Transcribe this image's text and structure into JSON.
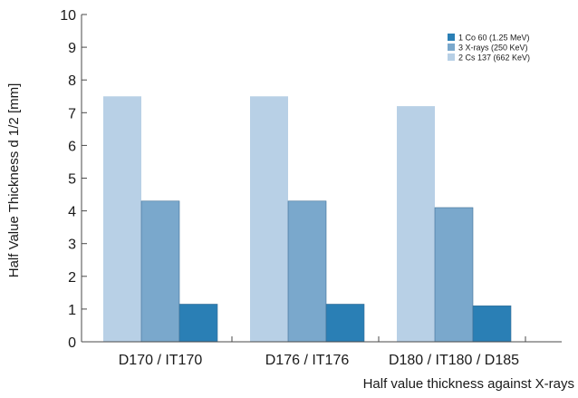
{
  "chart_data": {
    "type": "bar",
    "title": "",
    "xlabel": "Half value thickness against X-rays",
    "ylabel": "Half Value Thickness d 1/2 [mm]",
    "ylim": [
      0,
      10
    ],
    "yticks": [
      "0",
      "1",
      "2",
      "3",
      "4",
      "5",
      "6",
      "7",
      "8",
      "9",
      "10"
    ],
    "categories": [
      "D170 / IT170",
      "D176 / IT176",
      "D180 / IT180 / D185"
    ],
    "series": [
      {
        "name": "2 Cs 137 (662 KeV)",
        "color": "#b8d0e6",
        "values": [
          7.5,
          7.5,
          7.2
        ]
      },
      {
        "name": "3 X-rays (250 KeV)",
        "color": "#7aa8cc",
        "values": [
          4.3,
          4.3,
          4.1
        ]
      },
      {
        "name": "1 Co 60 (1.25 MeV)",
        "color": "#2a7fb5",
        "values": [
          1.15,
          1.15,
          1.1
        ]
      }
    ],
    "legend": {
      "position": "top-right",
      "order": [
        "1 Co 60 (1.25 MeV)",
        "3 X-rays (250 KeV)",
        "2 Cs 137 (662 KeV)"
      ]
    },
    "grid": false
  }
}
